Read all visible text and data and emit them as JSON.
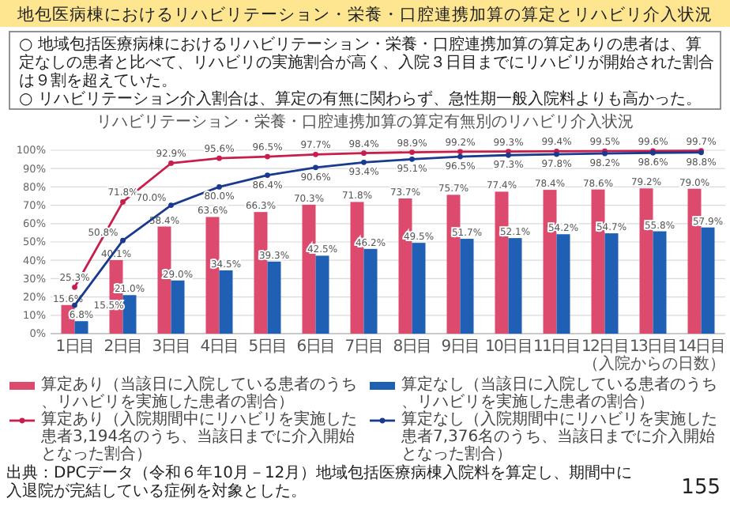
{
  "chart_data": {
    "type": "bar",
    "title": "地包医病棟におけるリハビリテーション・栄養・口腔連携加算の算定とリハビリ介入状況",
    "subtitle": "リハビリテーション・栄養・口腔連携加算の算定有無別のリハビリ介入状況",
    "xlabel": "（入院からの日数）",
    "annotations": [
      "○ 地域包括医療病棟におけるリハビリテーション・栄養・口腔連携加算の算定ありの患者は、算定なしの患者と比べて、リハビリの実施割合が高く、入院３日目までにリハビリが開始された割合は９割を超えていた。",
      "○ リハビリテーション介入割合は、算定の有無に関わらず、急性期一般入院料よりも高かった。",
      "出典：DPCデータ（令和６年10月－12月）地域包括医療病棟入院料を算定し、期間中に入退院が完結している症例を対象とした。",
      "155"
    ],
    "categories": [
      "1日目",
      "2日目",
      "3日目",
      "4日目",
      "5日目",
      "6日目",
      "7日目",
      "8日目",
      "9日目",
      "10日目",
      "11日目",
      "12日目",
      "13日目",
      "14日目"
    ],
    "ylim": [
      0,
      100
    ],
    "yticks": [
      {
        "value": 0,
        "label": "0%"
      },
      {
        "value": 10,
        "label": "10%"
      },
      {
        "value": 20,
        "label": "20%"
      },
      {
        "value": 30,
        "label": "30%"
      },
      {
        "value": 40,
        "label": "40%"
      },
      {
        "value": 50,
        "label": "50%"
      },
      {
        "value": 60,
        "label": "60%"
      },
      {
        "value": 70,
        "label": "70%"
      },
      {
        "value": 80,
        "label": "80%"
      },
      {
        "value": 90,
        "label": "90%"
      },
      {
        "value": 100,
        "label": "100%"
      }
    ],
    "grid": "y",
    "legend": "bottom",
    "marker": "circle",
    "series": [
      {
        "name": "算定あり（当該日に入院している患者のうち、リハビリを実施した患者の割合）",
        "color": "#dc4a6e",
        "values": [
          15.6,
          40.1,
          58.4,
          63.6,
          66.3,
          70.3,
          71.8,
          73.7,
          75.7,
          77.4,
          78.4,
          78.6,
          79.2,
          79.0
        ],
        "value_labels": [
          "15.6%",
          "40.1%",
          "58.4%",
          "63.6%",
          "66.3%",
          "70.3%",
          "71.8%",
          "73.7%",
          "75.7%",
          "77.4%",
          "78.4%",
          "78.6%",
          "79.2%",
          "79.0%"
        ]
      },
      {
        "name": "算定なし（当該日に入院している患者のうち、リハビリを実施した患者の割合）",
        "color": "#1f5fb4",
        "values": [
          6.8,
          21.0,
          29.0,
          34.5,
          39.3,
          42.5,
          46.2,
          49.5,
          51.7,
          52.1,
          54.2,
          54.7,
          55.8,
          57.9
        ],
        "value_labels": [
          "6.8%",
          "21.0%",
          "29.0%",
          "34.5%",
          "39.3%",
          "42.5%",
          "46.2%",
          "49.5%",
          "51.7%",
          "52.1%",
          "54.2%",
          "54.7%",
          "55.8%",
          "57.9%"
        ]
      },
      {
        "name": "算定あり（入院期間中にリハビリを実施した患者3,194名のうち、当該日までに介入開始となった割合）",
        "type": "line",
        "color": "#c81e4c",
        "values": [
          25.3,
          71.8,
          92.9,
          95.6,
          96.5,
          97.7,
          98.4,
          98.9,
          99.2,
          99.3,
          99.4,
          99.5,
          99.6,
          99.7
        ],
        "value_labels": [
          "25.3%",
          "71.8%",
          "92.9%",
          "95.6%",
          "96.5%",
          "97.7%",
          "98.4%",
          "98.9%",
          "99.2%",
          "99.3%",
          "99.4%",
          "99.5%",
          "99.6%",
          "99.7%"
        ]
      },
      {
        "name": "算定なし（入院期間中にリハビリを実施した患者7,376名のうち、当該日までに介入開始となった割合）",
        "type": "line",
        "color": "#1a3a8f",
        "values": [
          15.5,
          50.8,
          70.0,
          80.0,
          86.4,
          90.6,
          93.4,
          95.1,
          96.5,
          97.3,
          97.8,
          98.2,
          98.6,
          98.8
        ],
        "value_labels": [
          "15.5%",
          "50.8%",
          "70.0%",
          "80.0%",
          "86.4%",
          "90.6%",
          "93.4%",
          "95.1%",
          "96.5%",
          "97.3%",
          "97.8%",
          "98.2%",
          "98.6%",
          "98.8%"
        ]
      }
    ]
  }
}
